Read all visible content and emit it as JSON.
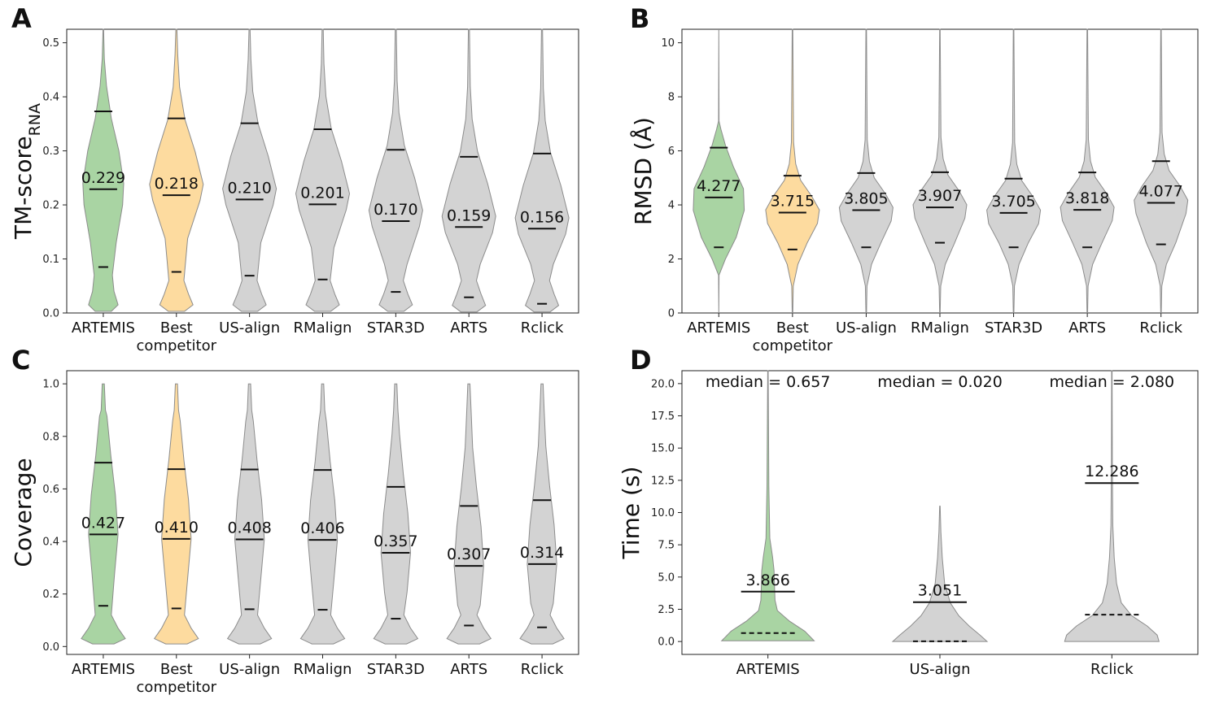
{
  "colors": {
    "artemis": "#a9d4a3",
    "best_competitor": "#fddb9f",
    "others": "#d3d3d3"
  },
  "chart_data": [
    {
      "type": "violin",
      "panel": "A",
      "ylabel": "TM-score",
      "ylabel_subscript": "RNA",
      "ylim": [
        0,
        0.525
      ],
      "yticks": [
        0.0,
        0.1,
        0.2,
        0.3,
        0.4,
        0.5
      ],
      "ytick_labels": [
        "0.0",
        "0.1",
        "0.2",
        "0.3",
        "0.4",
        "0.5"
      ],
      "categories": [
        {
          "label": "ARTEMIS",
          "color": "artemis",
          "median": 0.229,
          "median_label": "0.229",
          "upper": 0.373,
          "lower": 0.085,
          "max": 0.525,
          "min": 0.003
        },
        {
          "label": "Best\ncompetitor",
          "color": "best_competitor",
          "median": 0.218,
          "median_label": "0.218",
          "upper": 0.36,
          "lower": 0.076,
          "max": 0.525,
          "min": 0.003
        },
        {
          "label": "US-align",
          "color": "others",
          "median": 0.21,
          "median_label": "0.210",
          "upper": 0.351,
          "lower": 0.069,
          "max": 0.525,
          "min": 0.003
        },
        {
          "label": "RMalign",
          "color": "others",
          "median": 0.201,
          "median_label": "0.201",
          "upper": 0.34,
          "lower": 0.062,
          "max": 0.525,
          "min": 0.003
        },
        {
          "label": "STAR3D",
          "color": "others",
          "median": 0.17,
          "median_label": "0.170",
          "upper": 0.302,
          "lower": 0.039,
          "max": 0.525,
          "min": 0.003
        },
        {
          "label": "ARTS",
          "color": "others",
          "median": 0.159,
          "median_label": "0.159",
          "upper": 0.289,
          "lower": 0.029,
          "max": 0.525,
          "min": 0.002
        },
        {
          "label": "Rclick",
          "color": "others",
          "median": 0.156,
          "median_label": "0.156",
          "upper": 0.295,
          "lower": 0.017,
          "max": 0.525,
          "min": 0.002
        }
      ]
    },
    {
      "type": "violin",
      "panel": "B",
      "ylabel": "RMSD (Å)",
      "ylim": [
        0,
        10.5
      ],
      "yticks": [
        0,
        2,
        4,
        6,
        8,
        10
      ],
      "ytick_labels": [
        "0",
        "2",
        "4",
        "6",
        "8",
        "10"
      ],
      "categories": [
        {
          "label": "ARTEMIS",
          "color": "artemis",
          "median": 4.277,
          "median_label": "4.277",
          "upper": 6.12,
          "lower": 2.43,
          "max": 10.5,
          "min": 0
        },
        {
          "label": "Best\ncompetitor",
          "color": "best_competitor",
          "median": 3.715,
          "median_label": "3.715",
          "upper": 5.08,
          "lower": 2.35,
          "max": 10.5,
          "min": 0
        },
        {
          "label": "US-align",
          "color": "others",
          "median": 3.805,
          "median_label": "3.805",
          "upper": 5.18,
          "lower": 2.43,
          "max": 10.5,
          "min": 0
        },
        {
          "label": "RMalign",
          "color": "others",
          "median": 3.907,
          "median_label": "3.907",
          "upper": 5.21,
          "lower": 2.6,
          "max": 10.5,
          "min": 0
        },
        {
          "label": "STAR3D",
          "color": "others",
          "median": 3.705,
          "median_label": "3.705",
          "upper": 4.97,
          "lower": 2.43,
          "max": 10.5,
          "min": 0
        },
        {
          "label": "ARTS",
          "color": "others",
          "median": 3.818,
          "median_label": "3.818",
          "upper": 5.2,
          "lower": 2.43,
          "max": 10.5,
          "min": 0
        },
        {
          "label": "Rclick",
          "color": "others",
          "median": 4.077,
          "median_label": "4.077",
          "upper": 5.62,
          "lower": 2.54,
          "max": 10.5,
          "min": 0
        }
      ]
    },
    {
      "type": "violin",
      "panel": "C",
      "ylabel": "Coverage",
      "ylim": [
        -0.03,
        1.05
      ],
      "yticks": [
        0.0,
        0.2,
        0.4,
        0.6,
        0.8,
        1.0
      ],
      "ytick_labels": [
        "0.0",
        "0.2",
        "0.4",
        "0.6",
        "0.8",
        "1.0"
      ],
      "categories": [
        {
          "label": "ARTEMIS",
          "color": "artemis",
          "median": 0.427,
          "median_label": "0.427",
          "upper": 0.7,
          "lower": 0.155,
          "max": 1.0,
          "min": 0.01
        },
        {
          "label": "Best\ncompetitor",
          "color": "best_competitor",
          "median": 0.41,
          "median_label": "0.410",
          "upper": 0.675,
          "lower": 0.145,
          "max": 1.0,
          "min": 0.01
        },
        {
          "label": "US-align",
          "color": "others",
          "median": 0.408,
          "median_label": "0.408",
          "upper": 0.674,
          "lower": 0.142,
          "max": 1.0,
          "min": 0.01
        },
        {
          "label": "RMalign",
          "color": "others",
          "median": 0.406,
          "median_label": "0.406",
          "upper": 0.672,
          "lower": 0.14,
          "max": 1.0,
          "min": 0.01
        },
        {
          "label": "STAR3D",
          "color": "others",
          "median": 0.357,
          "median_label": "0.357",
          "upper": 0.608,
          "lower": 0.106,
          "max": 1.0,
          "min": 0.01
        },
        {
          "label": "ARTS",
          "color": "others",
          "median": 0.307,
          "median_label": "0.307",
          "upper": 0.535,
          "lower": 0.08,
          "max": 1.0,
          "min": 0.01
        },
        {
          "label": "Rclick",
          "color": "others",
          "median": 0.314,
          "median_label": "0.314",
          "upper": 0.557,
          "lower": 0.073,
          "max": 1.0,
          "min": 0.01
        }
      ]
    },
    {
      "type": "violin",
      "panel": "D",
      "ylabel": "Time (s)",
      "ylim": [
        -1.0,
        21.0
      ],
      "yticks": [
        0.0,
        2.5,
        5.0,
        7.5,
        10.0,
        12.5,
        15.0,
        17.5,
        20.0
      ],
      "ytick_labels": [
        "0.0",
        "2.5",
        "5.0",
        "7.5",
        "10.0",
        "12.5",
        "15.0",
        "17.5",
        "20.0"
      ],
      "categories": [
        {
          "label": "ARTEMIS",
          "color": "artemis",
          "mean": 3.866,
          "mean_label": "3.866",
          "median": 0.657,
          "median_text": "median = 0.657",
          "max": 21.0,
          "min": 0.05
        },
        {
          "label": "US-align",
          "color": "others",
          "mean": 3.051,
          "mean_label": "3.051",
          "median": 0.02,
          "median_text": "median = 0.020",
          "max": 10.5,
          "min": 0.0
        },
        {
          "label": "Rclick",
          "color": "others",
          "mean": 12.286,
          "mean_label": "12.286",
          "median": 2.08,
          "median_text": "median = 2.080",
          "max": 21.0,
          "min": 0.0
        }
      ]
    }
  ]
}
